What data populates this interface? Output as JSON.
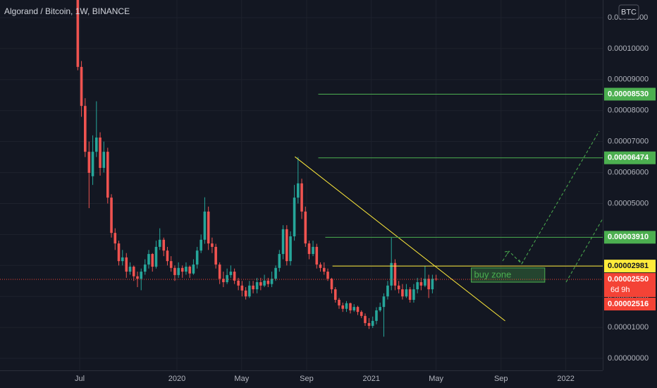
{
  "chart_data": {
    "type": "candlestick",
    "title": "Algorand / Bitcoin, 1W, BINANCE",
    "currency_badge": "BTC",
    "up_color": "#26a69a",
    "down_color": "#ef5350",
    "grid": true,
    "xlim": [
      2019.09,
      2022.19
    ],
    "xticks": [
      {
        "value": 2019.5,
        "label": "Jul"
      },
      2020,
      {
        "value": 2020.333,
        "label": "May"
      },
      {
        "value": 2020.667,
        "label": "Sep"
      },
      2021,
      {
        "value": 2021.333,
        "label": "May"
      },
      {
        "value": 2021.667,
        "label": "Sep"
      },
      2022
    ],
    "ylim": [
      -3.87e-06,
      0.0001157
    ],
    "yticks": [
      {
        "value": 0,
        "label": "0.00000000"
      },
      {
        "value": 1e-05,
        "label": "0.00001000"
      },
      {
        "value": 2e-05,
        "label": "0.00002000"
      },
      {
        "value": 3e-05,
        "label": "0.00003000"
      },
      {
        "value": 4e-05,
        "label": "0.00004000"
      },
      {
        "value": 5e-05,
        "label": "0.00005000"
      },
      {
        "value": 6e-05,
        "label": "0.00006000"
      },
      {
        "value": 7e-05,
        "label": "0.00007000"
      },
      {
        "value": 8e-05,
        "label": "0.00008000"
      },
      {
        "value": 9e-05,
        "label": "0.00009000"
      },
      {
        "value": 0.0001,
        "label": "0.00010000"
      },
      {
        "value": 0.00011,
        "label": "0.00011000"
      }
    ],
    "x": [
      2019.49,
      2019.509,
      2019.528,
      2019.548,
      2019.567,
      2019.586,
      2019.605,
      2019.624,
      2019.644,
      2019.663,
      2019.682,
      2019.701,
      2019.72,
      2019.74,
      2019.759,
      2019.778,
      2019.797,
      2019.816,
      2019.836,
      2019.855,
      2019.874,
      2019.893,
      2019.912,
      2019.932,
      2019.951,
      2019.97,
      2019.989,
      2020.008,
      2020.028,
      2020.047,
      2020.066,
      2020.085,
      2020.104,
      2020.124,
      2020.143,
      2020.162,
      2020.181,
      2020.2,
      2020.22,
      2020.239,
      2020.258,
      2020.277,
      2020.296,
      2020.316,
      2020.335,
      2020.354,
      2020.373,
      2020.392,
      2020.412,
      2020.431,
      2020.45,
      2020.469,
      2020.488,
      2020.508,
      2020.527,
      2020.546,
      2020.565,
      2020.584,
      2020.604,
      2020.623,
      2020.642,
      2020.661,
      2020.68,
      2020.7,
      2020.719,
      2020.738,
      2020.757,
      2020.776,
      2020.796,
      2020.815,
      2020.834,
      2020.853,
      2020.872,
      2020.892,
      2020.911,
      2020.93,
      2020.949,
      2020.968,
      2020.988,
      2021.007,
      2021.026,
      2021.045,
      2021.064,
      2021.084,
      2021.103,
      2021.122,
      2021.141,
      2021.16,
      2021.18,
      2021.199,
      2021.218,
      2021.237,
      2021.256,
      2021.276,
      2021.295,
      2021.314,
      2021.333
    ],
    "open": [
      0.000116,
      9.41e-05,
      8.15e-05,
      6.67e-05,
      5.88e-05,
      6.67e-05,
      7.13e-05,
      6.15e-05,
      6.67e-05,
      5.19e-05,
      4.05e-05,
      3.71e-05,
      3.14e-05,
      3.26e-05,
      2.8e-05,
      2.96e-05,
      2.65e-05,
      2.57e-05,
      2.8e-05,
      3.03e-05,
      3.37e-05,
      2.96e-05,
      3.6e-05,
      3.83e-05,
      3.48e-05,
      3.14e-05,
      2.92e-05,
      2.69e-05,
      2.92e-05,
      2.8e-05,
      2.96e-05,
      2.74e-05,
      3.03e-05,
      3.48e-05,
      3.83e-05,
      4.74e-05,
      3.71e-05,
      3.6e-05,
      3.03e-05,
      2.57e-05,
      2.46e-05,
      2.69e-05,
      2.8e-05,
      2.51e-05,
      2.35e-05,
      2.19e-05,
      2e-05,
      2.35e-05,
      2.23e-05,
      2.46e-05,
      2.35e-05,
      2.51e-05,
      2.4e-05,
      2.57e-05,
      2.92e-05,
      3.37e-05,
      4.17e-05,
      3.14e-05,
      3.94e-05,
      5.19e-05,
      5.65e-05,
      4.74e-05,
      3.71e-05,
      3.37e-05,
      3.6e-05,
      3.03e-05,
      2.92e-05,
      2.8e-05,
      2.57e-05,
      2.23e-05,
      1.89e-05,
      1.71e-05,
      1.6e-05,
      1.78e-05,
      1.55e-05,
      1.66e-05,
      1.5e-05,
      1.37e-05,
      1.14e-05,
      1.05e-05,
      1.21e-05,
      1.55e-05,
      1.66e-05,
      2e-05,
      2.35e-05,
      3.08e-05,
      2.35e-05,
      2.23e-05,
      2e-05,
      2.23e-05,
      1.89e-05,
      2.23e-05,
      2.46e-05,
      2.35e-05,
      2.57e-05,
      2.23e-05,
      2.57e-05
    ],
    "high": [
      0.000125,
      9.6e-05,
      8.4e-05,
      7e-05,
      7.2e-05,
      8.3e-05,
      7.3e-05,
      7e-05,
      6.8e-05,
      5.3e-05,
      4.2e-05,
      3.8e-05,
      3.5e-05,
      3.4e-05,
      3.1e-05,
      3e-05,
      2.8e-05,
      2.9e-05,
      3.2e-05,
      3.5e-05,
      3.4e-05,
      3.8e-05,
      4.2e-05,
      3.9e-05,
      3.6e-05,
      3.3e-05,
      3e-05,
      3.1e-05,
      3e-05,
      3.1e-05,
      3e-05,
      3.2e-05,
      3.6e-05,
      4e-05,
      5.2e-05,
      4.9e-05,
      3.9e-05,
      3.7e-05,
      3.1e-05,
      2.8e-05,
      2.9e-05,
      3e-05,
      2.9e-05,
      2.6e-05,
      2.5e-05,
      2.3e-05,
      2.5e-05,
      2.5e-05,
      2.6e-05,
      2.6e-05,
      2.7e-05,
      2.6e-05,
      2.8e-05,
      3e-05,
      3.5e-05,
      4.3e-05,
      4.3e-05,
      4.1e-05,
      5.6e-05,
      6.5e-05,
      5.8e-05,
      4.9e-05,
      3.8e-05,
      3.8e-05,
      3.7e-05,
      3.1e-05,
      3.1e-05,
      2.9e-05,
      2.6e-05,
      2.3e-05,
      1.95e-05,
      1.8e-05,
      1.85e-05,
      1.8e-05,
      1.75e-05,
      1.7e-05,
      1.55e-05,
      1.45e-05,
      1.3e-05,
      1.35e-05,
      1.65e-05,
      1.8e-05,
      2.1e-05,
      2.5e-05,
      3.9e-05,
      3.2e-05,
      2.5e-05,
      2.4e-05,
      2.4e-05,
      2.3e-05,
      2.4e-05,
      2.6e-05,
      2.6e-05,
      2.98e-05,
      2.7e-05,
      2.7e-05,
      2.7e-05
    ],
    "low": [
      9.3e-05,
      7.8e-05,
      6.5e-05,
      4.85e-05,
      5.6e-05,
      6.5e-05,
      5.9e-05,
      6e-05,
      5e-05,
      3.9e-05,
      3.5e-05,
      3e-05,
      3e-05,
      2.6e-05,
      2.7e-05,
      2.5e-05,
      2.3e-05,
      2.2e-05,
      2.7e-05,
      2.9e-05,
      2.8e-05,
      2.9e-05,
      3.5e-05,
      3.3e-05,
      3e-05,
      2.8e-05,
      2.5e-05,
      2.6e-05,
      2.6e-05,
      2.7e-05,
      2.6e-05,
      2.7e-05,
      2.9e-05,
      3.4e-05,
      3.7e-05,
      3.5e-05,
      3.4e-05,
      2.9e-05,
      2.4e-05,
      2.3e-05,
      2.4e-05,
      2.6e-05,
      2.4e-05,
      2.2e-05,
      2e-05,
      1.9e-05,
      1.95e-05,
      2.1e-05,
      2.1e-05,
      2.2e-05,
      2.3e-05,
      2.3e-05,
      2.3e-05,
      2.5e-05,
      2.8e-05,
      3.2e-05,
      3e-05,
      3e-05,
      3.8e-05,
      5e-05,
      4.5e-05,
      3.6e-05,
      3.2e-05,
      3.3e-05,
      2.9e-05,
      2.8e-05,
      2.7e-05,
      2.5e-05,
      2.1e-05,
      1.8e-05,
      1.6e-05,
      1.5e-05,
      1.5e-05,
      1.45e-05,
      1.5e-05,
      1.4e-05,
      1.3e-05,
      1.05e-05,
      9.5e-06,
      9.8e-06,
      1.1e-05,
      1.5e-05,
      7e-06,
      1.9e-05,
      2.2e-05,
      2.2e-05,
      2.1e-05,
      1.9e-05,
      1.95e-05,
      1.8e-05,
      1.8e-05,
      2.1e-05,
      2.2e-05,
      2.3e-05,
      1.95e-05,
      2.1e-05,
      2.5e-05
    ],
    "close": [
      9.41e-05,
      8.15e-05,
      6.67e-05,
      5.99e-05,
      6.67e-05,
      7.13e-05,
      6.15e-05,
      6.67e-05,
      5.19e-05,
      4.05e-05,
      3.71e-05,
      3.14e-05,
      3.26e-05,
      2.8e-05,
      2.96e-05,
      2.65e-05,
      2.57e-05,
      2.8e-05,
      3.03e-05,
      3.37e-05,
      2.96e-05,
      3.6e-05,
      3.83e-05,
      3.48e-05,
      3.14e-05,
      2.92e-05,
      2.69e-05,
      2.92e-05,
      2.8e-05,
      2.96e-05,
      2.74e-05,
      3.03e-05,
      3.48e-05,
      3.83e-05,
      4.74e-05,
      3.71e-05,
      3.6e-05,
      3.03e-05,
      2.57e-05,
      2.46e-05,
      2.69e-05,
      2.8e-05,
      2.51e-05,
      2.35e-05,
      2.19e-05,
      2e-05,
      2.35e-05,
      2.23e-05,
      2.46e-05,
      2.35e-05,
      2.51e-05,
      2.4e-05,
      2.57e-05,
      2.92e-05,
      3.37e-05,
      4.17e-05,
      3.14e-05,
      3.94e-05,
      5.19e-05,
      5.65e-05,
      4.74e-05,
      3.71e-05,
      3.37e-05,
      3.6e-05,
      3.03e-05,
      2.92e-05,
      2.8e-05,
      2.57e-05,
      2.23e-05,
      1.89e-05,
      1.71e-05,
      1.6e-05,
      1.78e-05,
      1.55e-05,
      1.66e-05,
      1.5e-05,
      1.37e-05,
      1.14e-05,
      1.05e-05,
      1.21e-05,
      1.55e-05,
      1.66e-05,
      2e-05,
      2.35e-05,
      3.08e-05,
      2.35e-05,
      2.23e-05,
      2e-05,
      2.23e-05,
      1.89e-05,
      2.23e-05,
      2.46e-05,
      2.35e-05,
      2.57e-05,
      2.23e-05,
      2.57e-05,
      2.55e-05
    ],
    "levels": [
      {
        "value": 8.53e-05,
        "label": "0.00008530",
        "from": 2020.727,
        "color": "#4caf50",
        "text_color": "#ffffff"
      },
      {
        "value": 6.474e-05,
        "label": "0.00006474",
        "from": 2020.727,
        "color": "#4caf50",
        "text_color": "#ffffff"
      },
      {
        "value": 3.91e-05,
        "label": "0.00003910",
        "from": 2020.763,
        "color": "#4caf50",
        "text_color": "#ffffff"
      },
      {
        "value": 2.981e-05,
        "label": "0.00002981",
        "from": 2020.8,
        "color": "#ffeb3b",
        "text_color": "#131722"
      }
    ],
    "last_price": {
      "value": 2.55e-05,
      "label": "0.00002550",
      "countdown": "6d 9h",
      "color": "#f44336"
    },
    "low_price": {
      "value": 2.516e-05,
      "label": "0.00002516",
      "color": "#f44336"
    },
    "trendline": {
      "x": [
        2020.607,
        2021.688
      ],
      "y": [
        6.51e-05,
        1.21e-05
      ],
      "color": "#ffeb3b"
    },
    "zone": {
      "label": "buy zone",
      "x": [
        2021.514,
        2021.892
      ],
      "y": [
        2.46e-05,
        2.92e-05
      ],
      "color": "#4caf50"
    }
  }
}
